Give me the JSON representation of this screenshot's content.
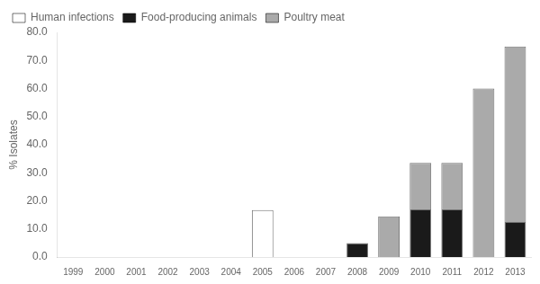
{
  "chart_data": {
    "type": "bar",
    "stacked": true,
    "categories": [
      "1999",
      "2000",
      "2001",
      "2002",
      "2003",
      "2004",
      "2005",
      "2006",
      "2007",
      "2008",
      "2009",
      "2010",
      "2011",
      "2012",
      "2013"
    ],
    "series": [
      {
        "name": "Human infections",
        "color": "#ffffff",
        "values": [
          0,
          0,
          0,
          0,
          0,
          0,
          16.7,
          0,
          0,
          0,
          0,
          0,
          0,
          0,
          0
        ]
      },
      {
        "name": "Food-producing animals",
        "color": "#1a1a1a",
        "values": [
          0,
          0,
          0,
          0,
          0,
          0,
          0,
          0,
          0,
          5.0,
          0,
          17.0,
          17.0,
          0,
          12.5
        ]
      },
      {
        "name": "Poultry meat",
        "color": "#aaaaaa",
        "values": [
          0,
          0,
          0,
          0,
          0,
          0,
          0,
          0,
          0,
          0,
          14.5,
          16.5,
          16.5,
          60.0,
          62.5
        ]
      }
    ],
    "ylabel": "% Isolates",
    "ylim": [
      0,
      80.0
    ],
    "yticks": [
      {
        "value": 0,
        "label": "0.0"
      },
      {
        "value": 10,
        "label": "10.0"
      },
      {
        "value": 20,
        "label": "20.0"
      },
      {
        "value": 30,
        "label": "30.0"
      },
      {
        "value": 40,
        "label": "40.0"
      },
      {
        "value": 50,
        "label": "50.0"
      },
      {
        "value": 60,
        "label": "60.0"
      },
      {
        "value": 70,
        "label": "70.0"
      },
      {
        "value": 80,
        "label": "80.0"
      }
    ],
    "grid": false,
    "legend": "upper left"
  }
}
